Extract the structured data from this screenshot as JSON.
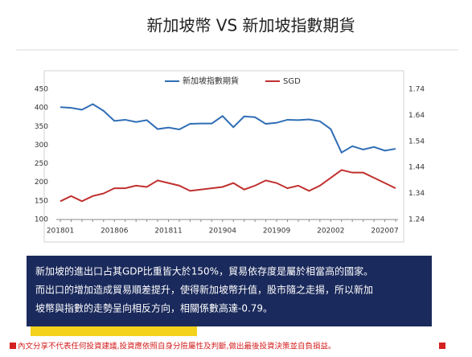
{
  "slide": {
    "title": "新加坡幣 VS 新加坡指數期貨",
    "paragraph": [
      "新加坡的進出口占其GDP比重皆大於150%，貿易依存度是屬於相當高的國家。",
      "而出口的增加造成貿易順差提升，使得新加坡幣升值，股市隨之走揚，所以新加",
      "坡幣與指數的走勢呈向相反方向，相關係數高達-0.79。"
    ],
    "disclaimer": "內文分享不代表任何投資建議,投資應依照自身分險屬性及判斷,做出最後投資決策並自負損益。"
  },
  "chart_data": {
    "type": "line",
    "categories": [
      "201801",
      null,
      null,
      null,
      null,
      "201806",
      null,
      null,
      null,
      null,
      "201811",
      null,
      null,
      null,
      null,
      "201904",
      null,
      null,
      null,
      null,
      "201909",
      null,
      null,
      null,
      null,
      "202002",
      null,
      null,
      null,
      null,
      "202007",
      null
    ],
    "series": [
      {
        "name": "新加坡指數期貨",
        "color": "#2f6db5",
        "values": [
          402,
          400,
          395,
          410,
          392,
          365,
          368,
          362,
          367,
          343,
          347,
          342,
          357,
          358,
          358,
          378,
          348,
          377,
          375,
          357,
          360,
          368,
          367,
          369,
          364,
          343,
          280,
          297,
          288,
          295,
          285,
          290
        ]
      },
      {
        "name": "SGD",
        "color": "#c0302e",
        "axis": "y2",
        "values": [
          1.31,
          1.33,
          1.31,
          1.33,
          1.34,
          1.36,
          1.36,
          1.37,
          1.365,
          1.39,
          1.38,
          1.37,
          1.35,
          1.355,
          1.36,
          1.365,
          1.38,
          1.355,
          1.37,
          1.39,
          1.38,
          1.36,
          1.37,
          1.35,
          1.37,
          1.4,
          1.43,
          1.42,
          1.42,
          1.4,
          1.38,
          1.36
        ]
      }
    ],
    "ylim": [
      100,
      450
    ],
    "yticks": [
      100,
      150,
      200,
      250,
      300,
      350,
      400,
      450
    ],
    "y2lim": [
      1.24,
      1.74
    ],
    "y2ticks": [
      1.24,
      1.34,
      1.44,
      1.54,
      1.64,
      1.74
    ],
    "grid": false,
    "legend": "top"
  }
}
